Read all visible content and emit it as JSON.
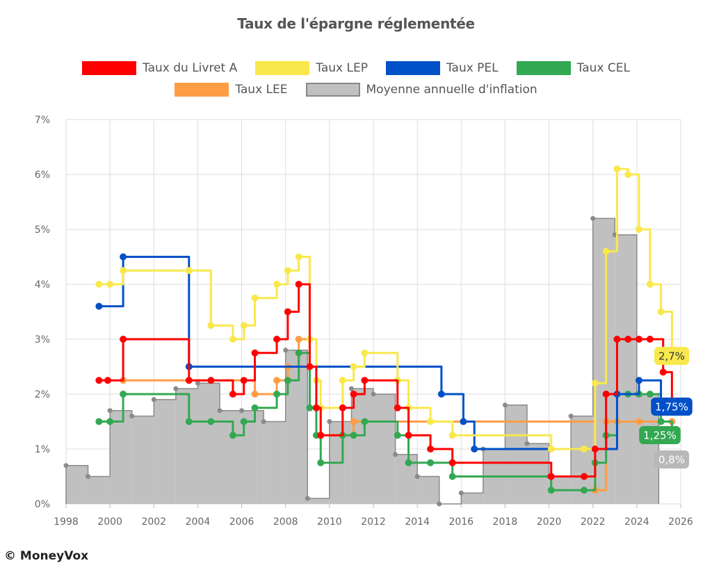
{
  "chart_data": {
    "type": "line",
    "title": "Taux de l'épargne réglementée",
    "xlim": [
      1998,
      2026
    ],
    "ylim": [
      0,
      7
    ],
    "x_ticks": [
      "1998",
      "2000",
      "2002",
      "2004",
      "2006",
      "2008",
      "2010",
      "2012",
      "2014",
      "2016",
      "2018",
      "2020",
      "2022",
      "2024",
      "2026"
    ],
    "y_ticks": [
      "0%",
      "1%",
      "2%",
      "3%",
      "4%",
      "5%",
      "6%",
      "7%"
    ],
    "grid": true,
    "legend_position": "top",
    "series": [
      {
        "name": "Taux du Livret A",
        "color": "#ff0000",
        "kind": "step",
        "points": [
          [
            1999.5,
            2.25
          ],
          [
            1999.9,
            2.25
          ],
          [
            2000.6,
            3.0
          ],
          [
            2003.6,
            2.25
          ],
          [
            2004.6,
            2.25
          ],
          [
            2005.6,
            2.0
          ],
          [
            2006.1,
            2.25
          ],
          [
            2006.6,
            2.75
          ],
          [
            2007.6,
            3.0
          ],
          [
            2008.1,
            3.5
          ],
          [
            2008.6,
            4.0
          ],
          [
            2009.1,
            2.5
          ],
          [
            2009.4,
            1.75
          ],
          [
            2009.6,
            1.25
          ],
          [
            2010.6,
            1.75
          ],
          [
            2011.1,
            2.0
          ],
          [
            2011.6,
            2.25
          ],
          [
            2013.1,
            1.75
          ],
          [
            2013.6,
            1.25
          ],
          [
            2014.6,
            1.0
          ],
          [
            2015.6,
            0.75
          ],
          [
            2020.1,
            0.5
          ],
          [
            2021.6,
            0.5
          ],
          [
            2022.1,
            1.0
          ],
          [
            2022.6,
            2.0
          ],
          [
            2023.1,
            3.0
          ],
          [
            2023.6,
            3.0
          ],
          [
            2024.1,
            3.0
          ],
          [
            2024.6,
            3.0
          ],
          [
            2025.2,
            2.4
          ],
          [
            2025.6,
            1.7
          ]
        ]
      },
      {
        "name": "Taux LEP",
        "color": "#f9e84c",
        "kind": "step",
        "points": [
          [
            1999.5,
            4.0
          ],
          [
            2000.0,
            4.0
          ],
          [
            2000.6,
            4.25
          ],
          [
            2003.6,
            4.25
          ],
          [
            2004.6,
            3.25
          ],
          [
            2005.6,
            3.0
          ],
          [
            2006.1,
            3.25
          ],
          [
            2006.6,
            3.75
          ],
          [
            2007.6,
            4.0
          ],
          [
            2008.1,
            4.25
          ],
          [
            2008.6,
            4.5
          ],
          [
            2009.1,
            3.0
          ],
          [
            2009.4,
            2.25
          ],
          [
            2009.6,
            1.75
          ],
          [
            2010.6,
            2.25
          ],
          [
            2011.1,
            2.5
          ],
          [
            2011.6,
            2.75
          ],
          [
            2013.1,
            2.25
          ],
          [
            2013.6,
            1.75
          ],
          [
            2014.6,
            1.5
          ],
          [
            2015.6,
            1.25
          ],
          [
            2020.1,
            1.0
          ],
          [
            2021.6,
            1.0
          ],
          [
            2022.1,
            2.2
          ],
          [
            2022.6,
            4.6
          ],
          [
            2023.1,
            6.1
          ],
          [
            2023.6,
            6.0
          ],
          [
            2024.1,
            5.0
          ],
          [
            2024.6,
            4.0
          ],
          [
            2025.1,
            3.5
          ],
          [
            2025.6,
            2.7
          ]
        ]
      },
      {
        "name": "Taux PEL",
        "color": "#0050c8",
        "kind": "step",
        "points": [
          [
            1999.5,
            3.6
          ],
          [
            2000.6,
            4.5
          ],
          [
            2003.6,
            2.5
          ],
          [
            2015.1,
            2.0
          ],
          [
            2016.1,
            1.5
          ],
          [
            2016.6,
            1.0
          ],
          [
            2023.1,
            2.0
          ],
          [
            2024.1,
            2.25
          ],
          [
            2025.1,
            1.75
          ]
        ]
      },
      {
        "name": "Taux CEL",
        "color": "#33a852",
        "kind": "step",
        "points": [
          [
            1999.5,
            1.5
          ],
          [
            2000.0,
            1.5
          ],
          [
            2000.6,
            2.0
          ],
          [
            2003.6,
            1.5
          ],
          [
            2004.6,
            1.5
          ],
          [
            2005.6,
            1.25
          ],
          [
            2006.1,
            1.5
          ],
          [
            2006.6,
            1.75
          ],
          [
            2007.6,
            2.0
          ],
          [
            2008.1,
            2.25
          ],
          [
            2008.6,
            2.75
          ],
          [
            2009.1,
            1.75
          ],
          [
            2009.4,
            1.25
          ],
          [
            2009.6,
            0.75
          ],
          [
            2010.6,
            1.25
          ],
          [
            2011.1,
            1.25
          ],
          [
            2011.6,
            1.5
          ],
          [
            2013.1,
            1.25
          ],
          [
            2013.6,
            0.75
          ],
          [
            2014.6,
            0.75
          ],
          [
            2015.6,
            0.5
          ],
          [
            2020.1,
            0.25
          ],
          [
            2021.6,
            0.25
          ],
          [
            2022.1,
            0.75
          ],
          [
            2022.6,
            1.25
          ],
          [
            2023.1,
            2.0
          ],
          [
            2023.6,
            2.0
          ],
          [
            2024.1,
            2.0
          ],
          [
            2024.6,
            2.0
          ],
          [
            2025.1,
            1.5
          ],
          [
            2025.6,
            1.25
          ]
        ]
      },
      {
        "name": "Taux LEE",
        "color": "#ff9d45",
        "kind": "step",
        "points": [
          [
            2000.6,
            2.25
          ],
          [
            2003.6,
            2.25
          ],
          [
            2006.6,
            2.0
          ],
          [
            2007.6,
            2.25
          ],
          [
            2008.1,
            2.5
          ],
          [
            2008.6,
            3.0
          ],
          [
            2009.1,
            2.5
          ],
          [
            2009.4,
            1.75
          ],
          [
            2009.6,
            1.25
          ],
          [
            2011.1,
            1.5
          ],
          [
            2022.1,
            0.25
          ],
          [
            2022.6,
            1.5
          ],
          [
            2023.1,
            1.5
          ],
          [
            2024.1,
            1.5
          ],
          [
            2025.1,
            1.5
          ],
          [
            2025.6,
            1.5
          ]
        ]
      },
      {
        "name": "Moyenne annuelle d'inflation",
        "color": "#c0c0c0",
        "kind": "bars",
        "x": [
          1998,
          1999,
          2000,
          2001,
          2002,
          2003,
          2004,
          2005,
          2006,
          2007,
          2008,
          2009,
          2010,
          2011,
          2012,
          2013,
          2014,
          2015,
          2016,
          2017,
          2018,
          2019,
          2020,
          2021,
          2022,
          2023,
          2024
        ],
        "values": [
          0.7,
          0.5,
          1.7,
          1.6,
          1.9,
          2.1,
          2.2,
          1.7,
          1.7,
          1.5,
          2.8,
          0.1,
          1.5,
          2.1,
          2.0,
          0.9,
          0.5,
          0.0,
          0.2,
          1.0,
          1.8,
          1.1,
          0.5,
          1.6,
          5.2,
          4.9,
          2.0
        ]
      }
    ],
    "end_labels": [
      {
        "series": "Taux LEP",
        "text": "2,7%",
        "value": 2.7,
        "bg": "#f9e84c",
        "fg": "#333333"
      },
      {
        "series": "Taux PEL",
        "text": "1,75%",
        "value": 1.75,
        "bg": "#0050c8",
        "fg": "#ffffff"
      },
      {
        "series": "Taux CEL",
        "text": "1,25%",
        "value": 1.25,
        "bg": "#33a852",
        "fg": "#ffffff"
      },
      {
        "series": "Moyenne annuelle d'inflation",
        "text": "0,8%",
        "value": 0.8,
        "bg": "#b8b8b8",
        "fg": "#ffffff"
      }
    ]
  },
  "footer": {
    "copyright": "© MoneyVox"
  }
}
